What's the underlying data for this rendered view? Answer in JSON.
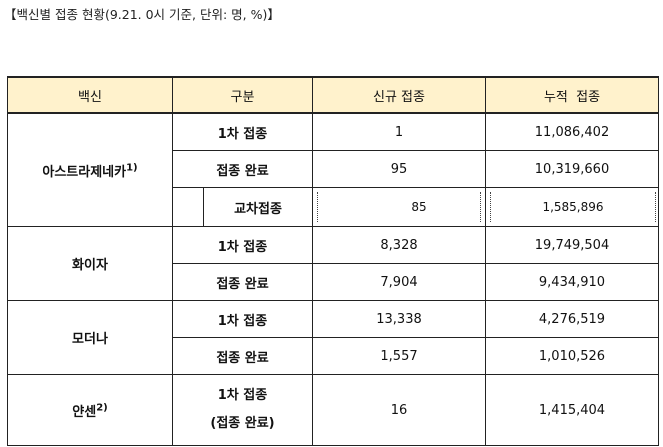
{
  "caption": "【백신별 접종 현황(9.21. 0시 기준, 단위: 명, %)】",
  "headers": [
    "백신",
    "구분",
    "신규 접종",
    "누적  접종"
  ],
  "vaccines": [
    {
      "name": "아스트라제네카",
      "note": "1)",
      "rows": [
        {
          "label": "1차 접종",
          "new": "1",
          "total": "11,086,402"
        },
        {
          "label": "접종 완료",
          "new": "95",
          "total": "10,319,660"
        },
        {
          "label": "교차접종",
          "new": "85",
          "total": "1,585,896"
        }
      ]
    },
    {
      "name": "화이자",
      "rows": [
        {
          "label": "1차 접종",
          "new": "8,328",
          "total": "19,749,504"
        },
        {
          "label": "접종 완료",
          "new": "7,904",
          "total": "9,434,910"
        }
      ]
    },
    {
      "name": "모더나",
      "rows": [
        {
          "label": "1차 접종",
          "new": "13,338",
          "total": "4,276,519"
        },
        {
          "label": "접종 완료",
          "new": "1,557",
          "total": "1,010,526"
        }
      ]
    },
    {
      "name": "얀센",
      "note": "2)",
      "rows": [
        {
          "label_line1": "1차 접종",
          "label_line2": "(접종 완료)",
          "new": "16",
          "total": "1,415,404"
        }
      ]
    }
  ]
}
